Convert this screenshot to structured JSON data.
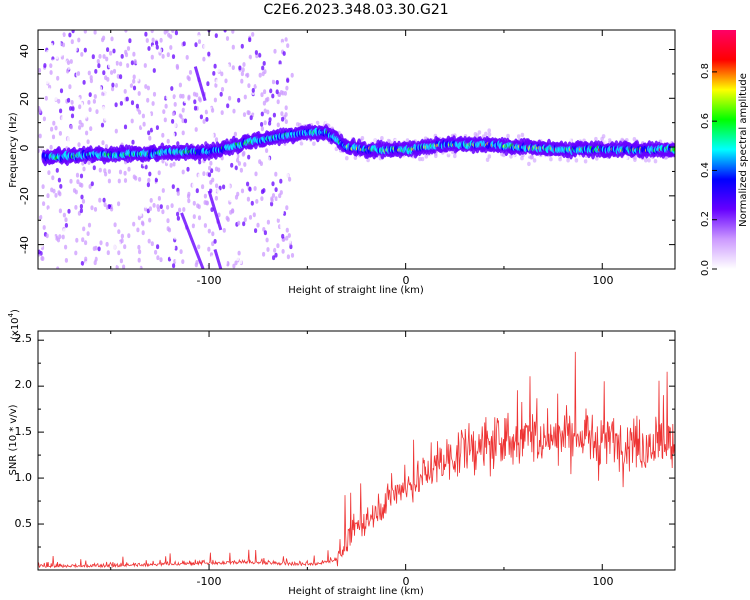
{
  "title": "C2E6.2023.348.03.30.G21",
  "chart_data": [
    {
      "type": "heatmap",
      "xlabel": "Height of straight line (km)",
      "ylabel": "Frequency (Hz)",
      "xlim": [
        -187,
        137
      ],
      "ylim": [
        -50,
        48
      ],
      "xticks": [
        "-100",
        "0",
        "100"
      ],
      "yticks": [
        "-40",
        "-20",
        "0",
        "20",
        "40"
      ],
      "colorbar": {
        "label": "Normalized spectral amplitude",
        "range": [
          0,
          0.97
        ],
        "ticks": [
          "0.0",
          "0.2",
          "0.4",
          "0.6",
          "0.8"
        ],
        "colors": [
          "#ffffff",
          "#cc99ff",
          "#6600ff",
          "#0000ff",
          "#00ffff",
          "#00ff00",
          "#ffff00",
          "#ff0000",
          "#ff0066"
        ]
      },
      "ridge": {
        "x": [
          -175,
          -160,
          -140,
          -120,
          -100,
          -80,
          -60,
          -50,
          -40,
          -30,
          -20,
          0,
          20,
          40,
          60,
          80,
          100,
          120,
          137
        ],
        "y": [
          -4,
          -3,
          -3,
          -2,
          -2,
          2,
          5,
          6,
          6,
          0,
          -1,
          -1,
          1,
          1,
          0,
          -1,
          -1,
          -1,
          -1
        ]
      }
    },
    {
      "type": "line",
      "xlabel": "Height of straight line (km)",
      "ylabel": "SNR (10 * v/v)",
      "y_multiplier": "(x10",
      "y_multiplier_exp": "4",
      "xlim": [
        -187,
        137
      ],
      "ylim": [
        0,
        2.6
      ],
      "xticks": [
        "-100",
        "0",
        "100"
      ],
      "yticks": [
        "0.5",
        "1.0",
        "1.5",
        "2.0",
        "2.5"
      ],
      "line_color": "#ee3333",
      "trend": {
        "x": [
          -187,
          -150,
          -120,
          -100,
          -80,
          -60,
          -45,
          -35,
          -25,
          -15,
          -5,
          5,
          15,
          30,
          50,
          70,
          90,
          110,
          137
        ],
        "y": [
          0.03,
          0.03,
          0.05,
          0.06,
          0.07,
          0.05,
          0.05,
          0.1,
          0.45,
          0.65,
          0.85,
          0.95,
          1.15,
          1.3,
          1.4,
          1.45,
          1.45,
          1.4,
          1.35
        ]
      }
    }
  ]
}
